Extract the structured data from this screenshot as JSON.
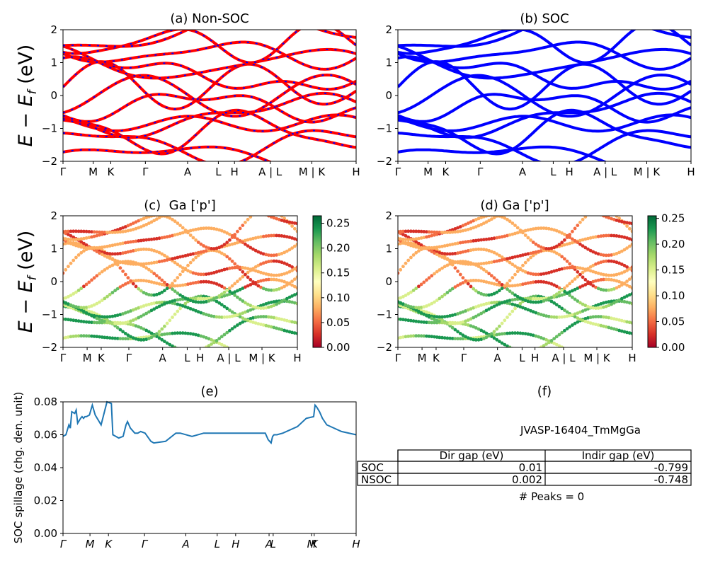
{
  "chart_data": [
    {
      "id": "a",
      "type": "line",
      "title": "(a) Non-SOC",
      "ylabel_main": "E − E",
      "ylabel_sub": "f",
      "ylabel_unit": " (eV)",
      "ylim": [
        -2,
        2
      ],
      "yticks": [
        "−2",
        "−1",
        "0",
        "1",
        "2"
      ],
      "xticks": [
        "Γ",
        "M",
        "K",
        "Γ",
        "A",
        "L",
        "H",
        "A | L",
        "M | K",
        "H"
      ],
      "series": [
        {
          "color": "#ff0000",
          "dashed_color": "#0000ff",
          "style": "red line with blue dashes"
        }
      ]
    },
    {
      "id": "b",
      "type": "line",
      "title": "(b) SOC",
      "ylim": [
        -2,
        2
      ],
      "yticks": [
        "−2",
        "−1",
        "0",
        "1",
        "2"
      ],
      "xticks": [
        "Γ",
        "M",
        "K",
        "Γ",
        "A",
        "L",
        "H",
        "A | L",
        "M | K",
        "H"
      ],
      "series": [
        {
          "color": "#0000ff"
        }
      ]
    },
    {
      "id": "c",
      "type": "scatter",
      "title": "(c)  Ga ['p']",
      "ylabel_main": "E − E",
      "ylabel_sub": "f",
      "ylabel_unit": " (eV)",
      "ylim": [
        -2,
        2
      ],
      "yticks": [
        "−2",
        "−1",
        "0",
        "1",
        "2"
      ],
      "xticks": [
        "Γ",
        "M",
        "K",
        "Γ",
        "A",
        "L",
        "H",
        "A | L",
        "M | K",
        "H"
      ],
      "colorbar": {
        "min": 0.0,
        "max": 0.265,
        "colormap": "RdYlGn",
        "ticks": [
          "0.00",
          "0.05",
          "0.10",
          "0.15",
          "0.20",
          "0.25"
        ]
      }
    },
    {
      "id": "d",
      "type": "scatter",
      "title": "(d) Ga ['p']",
      "ylim": [
        -2,
        2
      ],
      "yticks": [
        "−2",
        "−1",
        "0",
        "1",
        "2"
      ],
      "xticks": [
        "Γ",
        "M",
        "K",
        "Γ",
        "A",
        "L",
        "H",
        "A | L",
        "M | K",
        "H"
      ],
      "colorbar": {
        "min": 0.0,
        "max": 0.255,
        "colormap": "RdYlGn",
        "ticks": [
          "0.00",
          "0.05",
          "0.10",
          "0.15",
          "0.20",
          "0.25"
        ]
      }
    },
    {
      "id": "e",
      "type": "line",
      "title": "(e)",
      "ylabel": "SOC spillage (chg. den. unit)",
      "ylim": [
        0,
        0.08
      ],
      "yticks": [
        "0.00",
        "0.02",
        "0.04",
        "0.06",
        "0.08"
      ],
      "xticks": [
        "Γ",
        "M",
        "K",
        "Γ",
        "A",
        "L",
        "H",
        "A",
        "L",
        "M",
        "K",
        "H"
      ],
      "series": [
        {
          "color": "#1f77b4",
          "x": [
            0,
            0.01,
            0.02,
            0.025,
            0.03,
            0.04,
            0.045,
            0.05,
            0.06,
            0.065,
            0.07,
            0.075,
            0.08,
            0.09,
            0.1,
            0.11,
            0.13,
            0.15,
            0.165,
            0.17,
            0.18,
            0.19,
            0.205,
            0.215,
            0.22,
            0.23,
            0.245,
            0.255,
            0.265,
            0.28,
            0.3,
            0.31,
            0.35,
            0.385,
            0.4,
            0.44,
            0.48,
            0.52,
            0.555,
            0.62,
            0.69,
            0.7,
            0.705,
            0.71,
            0.715,
            0.72,
            0.73,
            0.75,
            0.8,
            0.83,
            0.855,
            0.86,
            0.865,
            0.875,
            0.885,
            0.9,
            0.95,
            1.0
          ],
          "y": [
            0.059,
            0.06,
            0.066,
            0.064,
            0.074,
            0.073,
            0.075,
            0.067,
            0.07,
            0.071,
            0.07,
            0.071,
            0.071,
            0.072,
            0.078,
            0.072,
            0.066,
            0.08,
            0.079,
            0.06,
            0.059,
            0.058,
            0.059,
            0.066,
            0.068,
            0.064,
            0.061,
            0.061,
            0.062,
            0.061,
            0.056,
            0.055,
            0.056,
            0.061,
            0.061,
            0.059,
            0.061,
            0.061,
            0.061,
            0.061,
            0.061,
            0.057,
            0.056,
            0.055,
            0.059,
            0.06,
            0.06,
            0.061,
            0.065,
            0.07,
            0.071,
            0.078,
            0.077,
            0.074,
            0.07,
            0.066,
            0.062,
            0.06
          ]
        }
      ]
    }
  ],
  "panel_f": {
    "title": "(f)",
    "material": "JVASP-16404_TmMgGa",
    "table": {
      "headers": [
        "",
        "Dir gap (eV)",
        "Indir gap (eV)"
      ],
      "rows": [
        {
          "label": "SOC",
          "dir": "0.01",
          "indir": "-0.799"
        },
        {
          "label": "NSOC",
          "dir": "0.002",
          "indir": "-0.748"
        }
      ]
    },
    "peaks": "# Peaks = 0"
  }
}
